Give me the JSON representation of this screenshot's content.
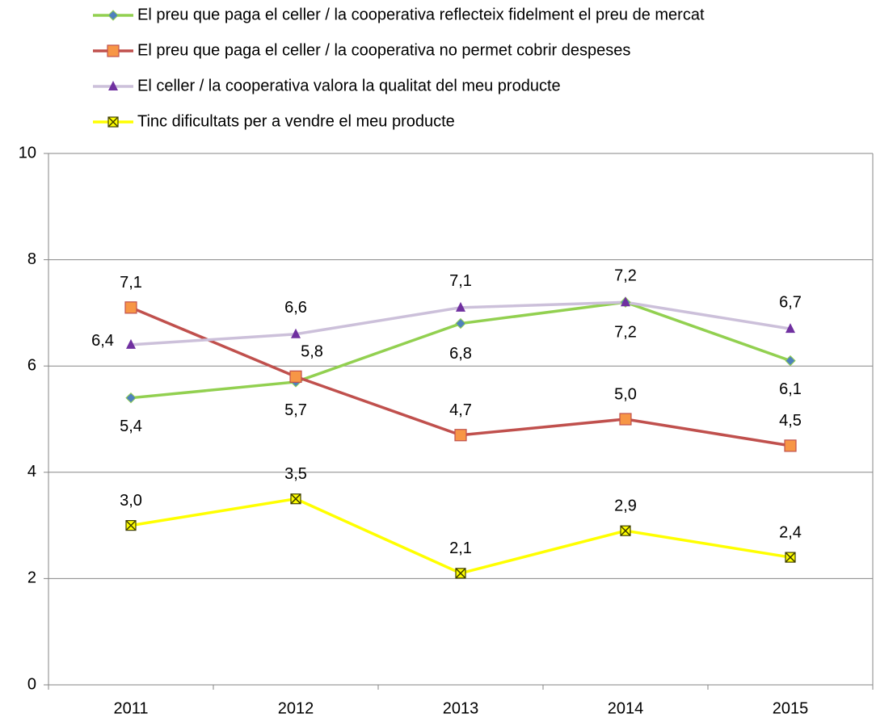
{
  "chart_data": {
    "type": "line",
    "categories": [
      "2011",
      "2012",
      "2013",
      "2014",
      "2015"
    ],
    "series": [
      {
        "name": "El preu que paga el celler / la cooperativa reflecteix fidelment el preu de mercat",
        "color": "#92d050",
        "marker_color": "#4f81bd",
        "values": [
          5.4,
          5.7,
          6.8,
          7.2,
          6.1
        ],
        "value_labels": [
          "5,4",
          "5,7",
          "6,8",
          "7,2",
          "6,1"
        ]
      },
      {
        "name": "El preu que paga el celler / la cooperativa no permet cobrir despeses",
        "color": "#c0504d",
        "marker_color": "#f79646",
        "values": [
          7.1,
          5.8,
          4.7,
          5.0,
          4.5
        ],
        "value_labels": [
          "7,1",
          "5,8",
          "4,7",
          "5,0",
          "4,5"
        ]
      },
      {
        "name": "El celler / la cooperativa valora la qualitat del meu producte",
        "color": "#ccc0da",
        "marker_color": "#7030a0",
        "values": [
          6.4,
          6.6,
          7.1,
          7.2,
          6.7
        ],
        "value_labels": [
          "6,4",
          "6,6",
          "7,1",
          "7,2",
          "6,7"
        ]
      },
      {
        "name": "Tinc dificultats per a vendre el meu producte",
        "color": "#ffff00",
        "marker_color": "#ffff00",
        "values": [
          3.0,
          3.5,
          2.1,
          2.9,
          2.4
        ],
        "value_labels": [
          "3,0",
          "3,5",
          "2,1",
          "2,9",
          "2,4"
        ]
      }
    ],
    "ylim": [
      0,
      10
    ],
    "yticks": [
      0,
      2,
      4,
      6,
      8,
      10
    ],
    "grid": true,
    "legend": "top"
  }
}
